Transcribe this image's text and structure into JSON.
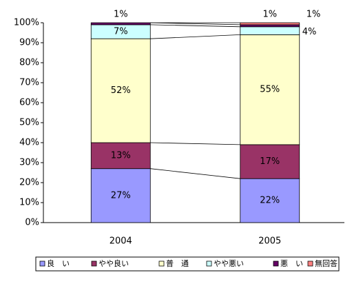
{
  "chart_data": {
    "type": "stacked_bar_100",
    "categories": [
      "2004",
      "2005"
    ],
    "series": [
      {
        "name": "良　い",
        "color": "#9999ff",
        "values": [
          27,
          22
        ],
        "value_labels": [
          "27%",
          "22%"
        ]
      },
      {
        "name": "やや良い",
        "color": "#993366",
        "values": [
          13,
          17
        ],
        "value_labels": [
          "13%",
          "17%"
        ]
      },
      {
        "name": "普　通",
        "color": "#ffffcc",
        "values": [
          52,
          55
        ],
        "value_labels": [
          "52%",
          "55%"
        ]
      },
      {
        "name": "やや悪い",
        "color": "#ccffff",
        "values": [
          7,
          4
        ],
        "value_labels": [
          "7%",
          "4%"
        ]
      },
      {
        "name": "悪　い",
        "color": "#660066",
        "values": [
          1,
          1
        ],
        "value_labels": [
          "1%",
          "1%"
        ]
      },
      {
        "name": "無回答",
        "color": "#ff8080",
        "values": [
          0,
          1
        ],
        "value_labels": [
          null,
          "1%"
        ]
      }
    ],
    "ylim": [
      0,
      100
    ],
    "yticks": [
      {
        "value": 0,
        "label": "0%"
      },
      {
        "value": 10,
        "label": "10%"
      },
      {
        "value": 20,
        "label": "20%"
      },
      {
        "value": 30,
        "label": "30%"
      },
      {
        "value": 40,
        "label": "40%"
      },
      {
        "value": 50,
        "label": "50%"
      },
      {
        "value": 60,
        "label": "60%"
      },
      {
        "value": 70,
        "label": "70%"
      },
      {
        "value": 80,
        "label": "80%"
      },
      {
        "value": 90,
        "label": "90%"
      },
      {
        "value": 100,
        "label": "100%"
      }
    ],
    "legend": "bottom"
  }
}
